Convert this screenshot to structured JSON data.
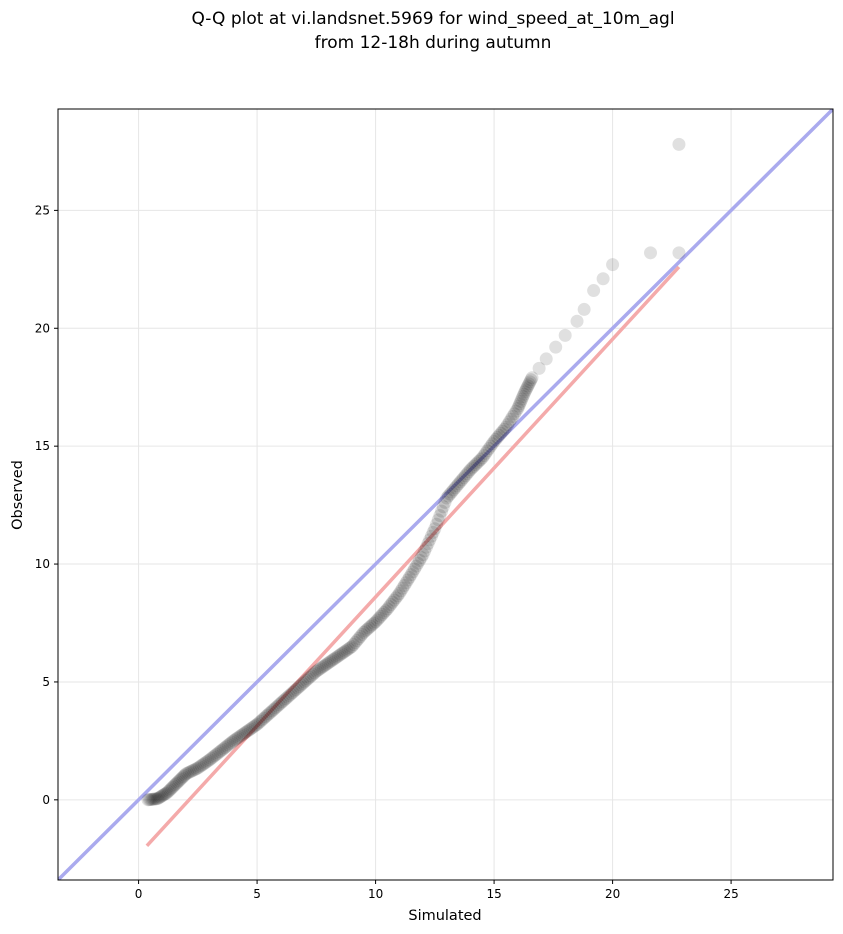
{
  "chart_data": {
    "type": "scatter",
    "title": [
      "Q-Q plot at vi.landsnet.5969 for wind_speed_at_10m_agl",
      "from 12-18h during autumn"
    ],
    "xlabel": "Simulated",
    "ylabel": "Observed",
    "xlim": [
      -3.4,
      29.3
    ],
    "ylim": [
      -3.4,
      29.3
    ],
    "xticks": [
      0,
      5,
      10,
      15,
      20,
      25
    ],
    "yticks": [
      0,
      5,
      10,
      15,
      20,
      25
    ],
    "grid": true,
    "colors": {
      "points": "#000000",
      "identity_line": "#aaaaee",
      "fit_line": "#f4aaaa"
    },
    "reference_lines": [
      {
        "kind": "identity",
        "x": [
          -3.4,
          29.3
        ],
        "y": [
          -3.4,
          29.3
        ]
      },
      {
        "kind": "fit",
        "x": [
          0.35,
          22.8
        ],
        "y": [
          -1.95,
          22.6
        ]
      }
    ],
    "quantiles": {
      "x": [
        0.4,
        0.8,
        1.2,
        1.6,
        2.0,
        2.5,
        3.0,
        3.5,
        4.0,
        4.5,
        5.0,
        5.5,
        6.0,
        6.5,
        7.0,
        7.5,
        8.0,
        8.5,
        9.0,
        9.5,
        10.0,
        10.5,
        11.0,
        11.5,
        12.0,
        12.5,
        13.0,
        13.5,
        14.0,
        14.5,
        15.0,
        15.5,
        16.0,
        16.3,
        16.6,
        16.9,
        17.2,
        17.6,
        18.0,
        18.5,
        18.8,
        19.2,
        19.6,
        20.0,
        21.6,
        22.8,
        22.8
      ],
      "y": [
        0.0,
        0.05,
        0.3,
        0.7,
        1.1,
        1.35,
        1.7,
        2.1,
        2.5,
        2.85,
        3.2,
        3.65,
        4.1,
        4.55,
        5.0,
        5.45,
        5.8,
        6.15,
        6.5,
        7.1,
        7.55,
        8.1,
        8.75,
        9.55,
        10.4,
        11.5,
        12.8,
        13.4,
        14.0,
        14.5,
        15.2,
        15.8,
        16.6,
        17.3,
        17.9,
        18.3,
        18.7,
        19.2,
        19.7,
        20.3,
        20.8,
        21.6,
        22.1,
        22.7,
        23.2,
        23.2,
        27.8
      ]
    }
  }
}
